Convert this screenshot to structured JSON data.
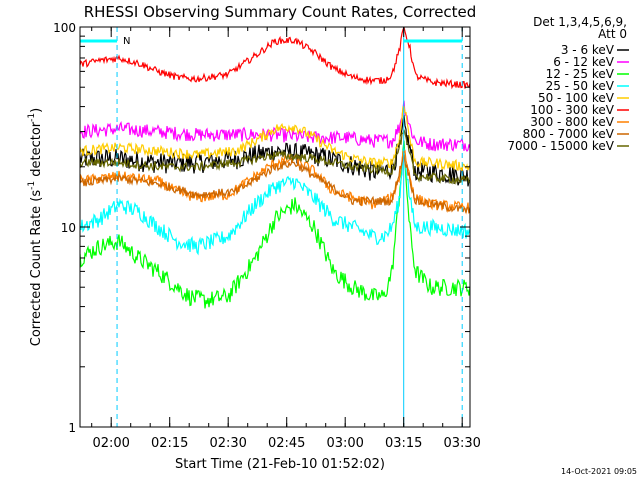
{
  "chart_data": {
    "type": "line",
    "title": "RHESSI Observing Summary Count Rates, Corrected",
    "xlabel": "Start Time (21-Feb-10 01:52:02)",
    "ylabel_parts": [
      "Corrected Count Rate (s",
      "-1",
      " detector",
      "-1",
      ")"
    ],
    "y_scale": "log",
    "ylim": [
      1,
      100
    ],
    "y_ticks": [
      {
        "value": 1,
        "label": "1"
      },
      {
        "value": 10,
        "label": "10"
      },
      {
        "value": 100,
        "label": "100"
      }
    ],
    "x_unit": "minutes since 01:52:02",
    "xlim": [
      0,
      100
    ],
    "x_ticks": [
      {
        "value": 8,
        "label": "02:00"
      },
      {
        "value": 23,
        "label": "02:15"
      },
      {
        "value": 38,
        "label": "02:30"
      },
      {
        "value": 53,
        "label": "02:45"
      },
      {
        "value": 68,
        "label": "03:00"
      },
      {
        "value": 83,
        "label": "03:15"
      },
      {
        "value": 98,
        "label": "03:30"
      }
    ],
    "legend_header": [
      "Det 1,3,4,5,6,9,",
      "Att 0"
    ],
    "legend_placement": "right",
    "series": [
      {
        "name": "3 - 6 keV",
        "color": "#000000",
        "noise": 0.12,
        "points": [
          [
            0,
            22
          ],
          [
            10,
            22
          ],
          [
            20,
            21
          ],
          [
            30,
            21
          ],
          [
            40,
            22
          ],
          [
            50,
            24
          ],
          [
            60,
            23
          ],
          [
            68,
            21
          ],
          [
            75,
            19
          ],
          [
            78,
            19
          ],
          [
            80,
            20
          ],
          [
            82,
            25
          ],
          [
            83,
            33
          ],
          [
            84.5,
            25
          ],
          [
            86,
            19
          ],
          [
            90,
            19
          ],
          [
            100,
            18
          ]
        ]
      },
      {
        "name": "6 - 12 keV",
        "color": "#ff00ff",
        "noise": 0.08,
        "points": [
          [
            0,
            30
          ],
          [
            10,
            31
          ],
          [
            20,
            30
          ],
          [
            30,
            29
          ],
          [
            40,
            29
          ],
          [
            50,
            29
          ],
          [
            60,
            28
          ],
          [
            68,
            28
          ],
          [
            75,
            27
          ],
          [
            80,
            27
          ],
          [
            82,
            32
          ],
          [
            83,
            42
          ],
          [
            84.5,
            32
          ],
          [
            86,
            27
          ],
          [
            90,
            26
          ],
          [
            100,
            26
          ]
        ]
      },
      {
        "name": "12 - 25 keV",
        "color": "#00ff00",
        "noise": 0.1,
        "points": [
          [
            0,
            7
          ],
          [
            5,
            8
          ],
          [
            10,
            8.5
          ],
          [
            15,
            7
          ],
          [
            20,
            6
          ],
          [
            25,
            5
          ],
          [
            28,
            4.5
          ],
          [
            32,
            4.3
          ],
          [
            38,
            4.5
          ],
          [
            45,
            7
          ],
          [
            50,
            11
          ],
          [
            55,
            13
          ],
          [
            60,
            10
          ],
          [
            65,
            6
          ],
          [
            70,
            5
          ],
          [
            75,
            4.5
          ],
          [
            78,
            4.5
          ],
          [
            80,
            6
          ],
          [
            81.5,
            12
          ],
          [
            83,
            26
          ],
          [
            84.5,
            10
          ],
          [
            86,
            6
          ],
          [
            90,
            5
          ],
          [
            95,
            5
          ],
          [
            100,
            5
          ]
        ]
      },
      {
        "name": "25 - 50 keV",
        "color": "#00ffff",
        "noise": 0.09,
        "points": [
          [
            0,
            10
          ],
          [
            5,
            11
          ],
          [
            10,
            13
          ],
          [
            15,
            12
          ],
          [
            20,
            10
          ],
          [
            25,
            8.5
          ],
          [
            30,
            8
          ],
          [
            38,
            9
          ],
          [
            45,
            13
          ],
          [
            50,
            16
          ],
          [
            55,
            17
          ],
          [
            60,
            14
          ],
          [
            65,
            11
          ],
          [
            70,
            10
          ],
          [
            75,
            9
          ],
          [
            78,
            9
          ],
          [
            80,
            10
          ],
          [
            82,
            14
          ],
          [
            83,
            26
          ],
          [
            84.5,
            14
          ],
          [
            86,
            10
          ],
          [
            90,
            10
          ],
          [
            100,
            9.5
          ]
        ]
      },
      {
        "name": "50 - 100 keV",
        "color": "#ffcc00",
        "noise": 0.06,
        "points": [
          [
            0,
            24
          ],
          [
            10,
            25
          ],
          [
            20,
            24
          ],
          [
            30,
            23
          ],
          [
            40,
            24
          ],
          [
            45,
            27
          ],
          [
            50,
            31
          ],
          [
            55,
            32
          ],
          [
            60,
            28
          ],
          [
            65,
            24
          ],
          [
            70,
            22
          ],
          [
            75,
            21
          ],
          [
            80,
            21
          ],
          [
            82,
            28
          ],
          [
            83,
            43
          ],
          [
            84.5,
            28
          ],
          [
            86,
            21
          ],
          [
            90,
            21
          ],
          [
            100,
            20
          ]
        ]
      },
      {
        "name": "100 - 300 keV",
        "color": "#ff0000",
        "noise": 0.04,
        "points": [
          [
            0,
            65
          ],
          [
            5,
            68
          ],
          [
            10,
            70
          ],
          [
            15,
            66
          ],
          [
            20,
            60
          ],
          [
            25,
            56
          ],
          [
            30,
            55
          ],
          [
            38,
            58
          ],
          [
            45,
            72
          ],
          [
            50,
            85
          ],
          [
            55,
            86
          ],
          [
            60,
            75
          ],
          [
            65,
            62
          ],
          [
            70,
            56
          ],
          [
            75,
            54
          ],
          [
            78,
            54
          ],
          [
            80,
            58
          ],
          [
            82,
            78
          ],
          [
            83,
            100
          ],
          [
            84.5,
            80
          ],
          [
            86,
            57
          ],
          [
            90,
            53
          ],
          [
            95,
            52
          ],
          [
            100,
            51
          ]
        ]
      },
      {
        "name": "300 - 800 keV",
        "color": "#ff8000",
        "noise": 0.06,
        "points": [
          [
            0,
            17
          ],
          [
            10,
            18
          ],
          [
            20,
            17
          ],
          [
            25,
            15
          ],
          [
            30,
            14
          ],
          [
            38,
            14.5
          ],
          [
            45,
            18
          ],
          [
            50,
            21
          ],
          [
            55,
            22
          ],
          [
            60,
            19
          ],
          [
            65,
            15
          ],
          [
            70,
            14
          ],
          [
            75,
            13
          ],
          [
            80,
            14
          ],
          [
            82,
            18
          ],
          [
            83,
            25
          ],
          [
            84.5,
            18
          ],
          [
            86,
            14
          ],
          [
            90,
            13
          ],
          [
            100,
            12.5
          ]
        ]
      },
      {
        "name": "800 - 7000 keV",
        "color": "#cc6600",
        "noise": 0.05,
        "points": [
          [
            0,
            16.5
          ],
          [
            10,
            17.5
          ],
          [
            20,
            16.5
          ],
          [
            30,
            14.5
          ],
          [
            40,
            15
          ],
          [
            50,
            20
          ],
          [
            55,
            21
          ],
          [
            60,
            18
          ],
          [
            70,
            13.5
          ],
          [
            80,
            13.5
          ],
          [
            83,
            23
          ],
          [
            86,
            13.5
          ],
          [
            100,
            12
          ]
        ]
      },
      {
        "name": "7000 - 15000 keV",
        "color": "#666600",
        "noise": 0.05,
        "points": [
          [
            0,
            21
          ],
          [
            10,
            21
          ],
          [
            20,
            20
          ],
          [
            30,
            20
          ],
          [
            40,
            21
          ],
          [
            50,
            23
          ],
          [
            60,
            22
          ],
          [
            70,
            20
          ],
          [
            80,
            19
          ],
          [
            83,
            30
          ],
          [
            86,
            18
          ],
          [
            100,
            17
          ]
        ]
      }
    ],
    "blue_solid_lines": [
      0,
      83
    ],
    "cyan_dashed_lines": [
      9.5,
      98
    ],
    "top_bars": [
      [
        0,
        9.5
      ],
      [
        83,
        98
      ]
    ],
    "bar_marker": "N",
    "bar_marker_at": 10
  },
  "footer": {
    "timestamp": "14-Oct-2021 09:05"
  }
}
